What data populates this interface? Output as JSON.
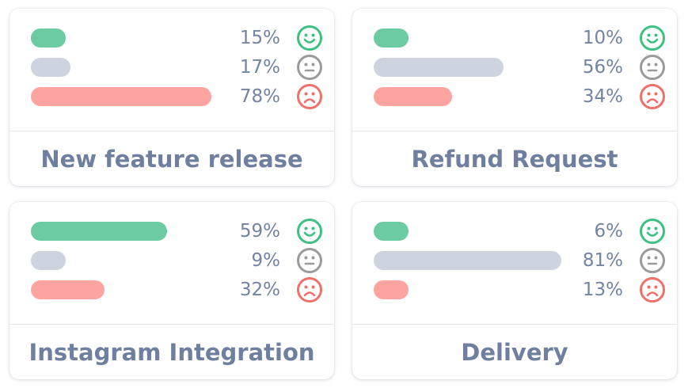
{
  "colors": {
    "positive": "#6ccba1",
    "neutral": "#cdd4e0",
    "negative": "#fda4a1",
    "positive_icon": "#3ec083",
    "neutral_icon": "#9b9b9b",
    "negative_icon": "#f0706a"
  },
  "cards": [
    {
      "title": "New feature release",
      "rows": [
        {
          "sentiment": "positive",
          "label": "15%",
          "value": 15,
          "icon": "smiley-face-icon"
        },
        {
          "sentiment": "neutral",
          "label": "17%",
          "value": 17,
          "icon": "neutral-face-icon"
        },
        {
          "sentiment": "negative",
          "label": "78%",
          "value": 78,
          "icon": "sad-face-icon"
        }
      ]
    },
    {
      "title": "Refund Request",
      "rows": [
        {
          "sentiment": "positive",
          "label": "10%",
          "value": 10,
          "icon": "smiley-face-icon"
        },
        {
          "sentiment": "neutral",
          "label": "56%",
          "value": 56,
          "icon": "neutral-face-icon"
        },
        {
          "sentiment": "negative",
          "label": "34%",
          "value": 34,
          "icon": "sad-face-icon"
        }
      ]
    },
    {
      "title": "Instagram Integration",
      "rows": [
        {
          "sentiment": "positive",
          "label": "59%",
          "value": 59,
          "icon": "smiley-face-icon"
        },
        {
          "sentiment": "neutral",
          "label": "9%",
          "value": 9,
          "icon": "neutral-face-icon"
        },
        {
          "sentiment": "negative",
          "label": "32%",
          "value": 32,
          "icon": "sad-face-icon"
        }
      ]
    },
    {
      "title": "Delivery",
      "rows": [
        {
          "sentiment": "positive",
          "label": "6%",
          "value": 6,
          "icon": "smiley-face-icon"
        },
        {
          "sentiment": "neutral",
          "label": "81%",
          "value": 81,
          "icon": "neutral-face-icon"
        },
        {
          "sentiment": "negative",
          "label": "13%",
          "value": 13,
          "icon": "sad-face-icon"
        }
      ]
    }
  ]
}
